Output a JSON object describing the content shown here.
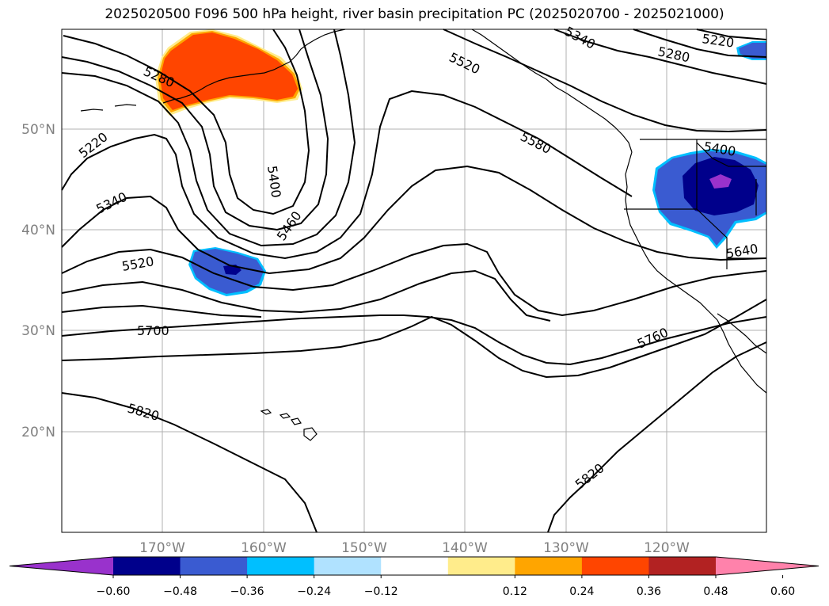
{
  "title": "2025020500 F096 500 hPa height, river basin precipitation PC (2025020700 - 2025021000)",
  "map": {
    "lon_ticks": [
      "170°W",
      "160°W",
      "150°W",
      "140°W",
      "130°W",
      "120°W"
    ],
    "lat_ticks": [
      "50°N",
      "40°N",
      "30°N",
      "20°N"
    ],
    "contour_labels": [
      "5280",
      "5220",
      "5340",
      "5400",
      "5460",
      "5520",
      "5700",
      "5820",
      "5520",
      "5580",
      "5640",
      "5760",
      "5820",
      "5280",
      "5220",
      "5400",
      "5340"
    ]
  },
  "colorbar": {
    "ticks": [
      "−0.60",
      "−0.48",
      "−0.36",
      "−0.24",
      "−0.12",
      "0.12",
      "0.24",
      "0.36",
      "0.48",
      "0.60"
    ],
    "colors": [
      "#9932cc",
      "#00008b",
      "#3a5bd1",
      "#00bfff",
      "#b0e2ff",
      "#ffffff",
      "#ffec8b",
      "#ffa500",
      "#ff4500",
      "#b22222",
      "#ff82ab"
    ]
  },
  "colors": {
    "positive_anomaly": "#ff4500",
    "negative_light": "#3a5bd1",
    "negative_dark": "#00008b",
    "negative_extreme": "#9932cc",
    "grid": "#b0b0b0"
  }
}
